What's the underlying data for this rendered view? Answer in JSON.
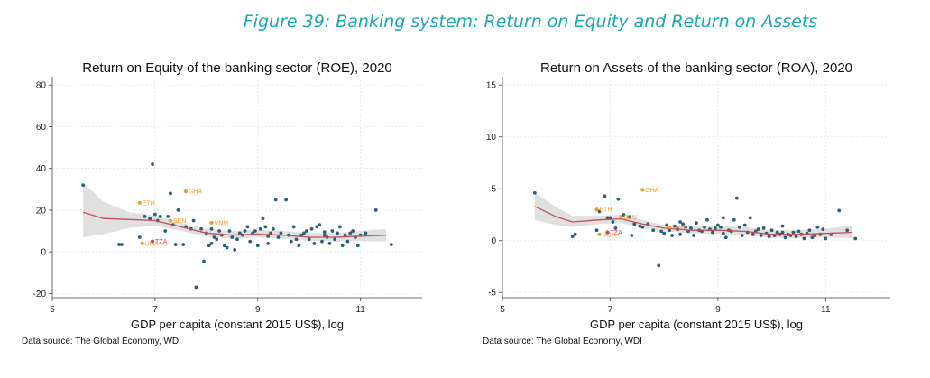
{
  "figure_title": "Figure 39: Banking system: Return on Equity and Return on Assets",
  "colors": {
    "title": "#19a7b0",
    "dots": "#2d5e7a",
    "fit_line": "#c0505a",
    "ci_band": "#d6d6d6",
    "highlight_orange": "#f39a2b",
    "highlight_red": "#e8423c",
    "grid": "#e6e6e6"
  },
  "chart_data": [
    {
      "type": "scatter",
      "title": "Return on Equity of the banking sector (ROE), 2020",
      "xlabel": "GDP per capita (constant 2015 US$), log",
      "ylabel": "",
      "source": "Data source: The Global Economy, WDI",
      "xlim": [
        5,
        12.2
      ],
      "ylim": [
        -22,
        84
      ],
      "xticks": [
        5,
        7,
        9,
        11
      ],
      "yticks": [
        -20,
        0,
        20,
        40,
        60,
        80
      ],
      "grid": true,
      "fit_line": [
        [
          5.6,
          19
        ],
        [
          6.0,
          16
        ],
        [
          6.5,
          15.5
        ],
        [
          7.0,
          15
        ],
        [
          7.5,
          12
        ],
        [
          8.0,
          9
        ],
        [
          8.5,
          8
        ],
        [
          9.0,
          8.5
        ],
        [
          9.5,
          8
        ],
        [
          10.0,
          7
        ],
        [
          10.5,
          7
        ],
        [
          11.0,
          7.5
        ],
        [
          11.5,
          8
        ]
      ],
      "ci_band": {
        "x": [
          5.6,
          6.0,
          6.5,
          7.0,
          7.5,
          8.0,
          8.5,
          9.0,
          9.5,
          10.0,
          10.5,
          11.0,
          11.5
        ],
        "upper": [
          33,
          24,
          19,
          17.5,
          14,
          11,
          10,
          10.5,
          10,
          9,
          9,
          10,
          11
        ],
        "lower": [
          7,
          8.5,
          11.5,
          12.5,
          10,
          7.3,
          6.3,
          6.8,
          6.3,
          5.3,
          5,
          5.2,
          5
        ]
      },
      "points": [
        [
          5.6,
          32
        ],
        [
          6.3,
          3.5
        ],
        [
          6.35,
          3.5
        ],
        [
          6.8,
          17
        ],
        [
          6.9,
          16
        ],
        [
          6.95,
          42
        ],
        [
          7.0,
          18
        ],
        [
          7.05,
          15
        ],
        [
          7.1,
          17
        ],
        [
          7.2,
          10
        ],
        [
          7.25,
          17
        ],
        [
          7.3,
          28
        ],
        [
          7.35,
          13
        ],
        [
          7.4,
          3.5
        ],
        [
          7.45,
          20
        ],
        [
          7.55,
          3.5
        ],
        [
          7.6,
          12
        ],
        [
          7.7,
          11
        ],
        [
          7.75,
          15
        ],
        [
          7.8,
          -17
        ],
        [
          7.9,
          11
        ],
        [
          7.95,
          -4.5
        ],
        [
          8.0,
          9
        ],
        [
          8.05,
          3
        ],
        [
          8.1,
          11
        ],
        [
          8.15,
          7
        ],
        [
          8.2,
          6
        ],
        [
          8.25,
          10
        ],
        [
          8.3,
          8
        ],
        [
          8.35,
          3
        ],
        [
          8.4,
          2
        ],
        [
          8.45,
          10
        ],
        [
          8.5,
          7
        ],
        [
          8.55,
          1
        ],
        [
          8.6,
          6
        ],
        [
          8.65,
          9
        ],
        [
          8.7,
          8
        ],
        [
          8.75,
          10
        ],
        [
          8.8,
          12
        ],
        [
          8.85,
          5
        ],
        [
          8.9,
          9
        ],
        [
          8.95,
          10
        ],
        [
          9.0,
          3
        ],
        [
          9.05,
          11
        ],
        [
          9.1,
          16
        ],
        [
          9.15,
          12
        ],
        [
          9.2,
          4
        ],
        [
          9.25,
          9
        ],
        [
          9.3,
          11
        ],
        [
          9.35,
          25
        ],
        [
          9.4,
          7
        ],
        [
          9.45,
          9
        ],
        [
          9.55,
          25
        ],
        [
          9.6,
          8
        ],
        [
          9.65,
          5
        ],
        [
          9.7,
          12
        ],
        [
          9.75,
          6
        ],
        [
          9.8,
          3
        ],
        [
          9.85,
          8
        ],
        [
          9.9,
          9
        ],
        [
          9.95,
          10
        ],
        [
          10.0,
          6
        ],
        [
          10.05,
          11
        ],
        [
          10.1,
          4
        ],
        [
          10.15,
          12
        ],
        [
          10.2,
          13
        ],
        [
          10.25,
          5
        ],
        [
          10.3,
          8
        ],
        [
          10.35,
          7
        ],
        [
          10.4,
          4
        ],
        [
          10.45,
          10
        ],
        [
          10.5,
          6
        ],
        [
          10.55,
          9
        ],
        [
          10.6,
          12
        ],
        [
          10.65,
          3
        ],
        [
          10.7,
          8
        ],
        [
          10.75,
          5
        ],
        [
          10.8,
          9
        ],
        [
          10.85,
          10
        ],
        [
          10.9,
          7
        ],
        [
          10.95,
          3
        ],
        [
          11.0,
          8
        ],
        [
          11.1,
          9
        ],
        [
          11.3,
          20
        ],
        [
          11.6,
          3.5
        ],
        [
          8.1,
          4
        ],
        [
          9.2,
          7.5
        ],
        [
          10.3,
          9.5
        ],
        [
          6.7,
          7
        ]
      ],
      "highlights": [
        {
          "label": "ETH",
          "x": 6.7,
          "y": 23.5,
          "color": "orange"
        },
        {
          "label": "GHA",
          "x": 7.6,
          "y": 29,
          "color": "orange"
        },
        {
          "label": "SEN",
          "x": 7.3,
          "y": 15,
          "color": "orange"
        },
        {
          "label": "VNM",
          "x": 8.1,
          "y": 14,
          "color": "orange"
        },
        {
          "label": "UGA",
          "x": 6.75,
          "y": 4,
          "color": "orange"
        },
        {
          "label": "TZA",
          "x": 6.95,
          "y": 5,
          "color": "red"
        }
      ]
    },
    {
      "type": "scatter",
      "title": "Return on Assets of the banking sector (ROA), 2020",
      "xlabel": "GDP per capita (constant 2015 US$), log",
      "ylabel": "",
      "source": "Data source: The Global Economy, WDI",
      "xlim": [
        5,
        12.2
      ],
      "ylim": [
        -5.5,
        15.8
      ],
      "xticks": [
        5,
        7,
        9,
        11
      ],
      "yticks": [
        -5,
        0,
        5,
        10,
        15
      ],
      "grid": true,
      "fit_line": [
        [
          5.6,
          3.3
        ],
        [
          6.0,
          2.3
        ],
        [
          6.3,
          1.8
        ],
        [
          6.8,
          2.0
        ],
        [
          7.2,
          2.1
        ],
        [
          7.6,
          1.6
        ],
        [
          8.0,
          1.2
        ],
        [
          8.5,
          1.0
        ],
        [
          9.0,
          1.0
        ],
        [
          9.5,
          0.9
        ],
        [
          10.0,
          0.6
        ],
        [
          10.5,
          0.6
        ],
        [
          11.0,
          0.7
        ],
        [
          11.5,
          0.8
        ]
      ],
      "ci_band": {
        "x": [
          5.6,
          6.0,
          6.3,
          6.8,
          7.2,
          7.6,
          8.0,
          8.5,
          9.0,
          9.5,
          10.0,
          10.5,
          11.0,
          11.5
        ],
        "upper": [
          4.6,
          3.2,
          2.4,
          2.4,
          2.5,
          2.0,
          1.5,
          1.35,
          1.4,
          1.3,
          1.0,
          1.0,
          1.15,
          1.45
        ],
        "lower": [
          2.0,
          1.5,
          1.3,
          1.6,
          1.7,
          1.2,
          0.9,
          0.7,
          0.65,
          0.55,
          0.25,
          0.25,
          0.3,
          0.25
        ]
      },
      "points": [
        [
          5.6,
          4.6
        ],
        [
          6.3,
          0.4
        ],
        [
          6.35,
          0.6
        ],
        [
          6.8,
          2.8
        ],
        [
          6.9,
          4.3
        ],
        [
          6.95,
          2.2
        ],
        [
          7.0,
          2.2
        ],
        [
          7.05,
          1.8
        ],
        [
          7.1,
          1.2
        ],
        [
          7.15,
          4.0
        ],
        [
          7.25,
          2.5
        ],
        [
          7.35,
          2.3
        ],
        [
          7.4,
          0.5
        ],
        [
          7.45,
          1.6
        ],
        [
          7.55,
          1.4
        ],
        [
          7.6,
          1.3
        ],
        [
          7.7,
          1.6
        ],
        [
          7.8,
          1.0
        ],
        [
          7.9,
          -2.4
        ],
        [
          7.95,
          0.9
        ],
        [
          8.0,
          0.7
        ],
        [
          8.05,
          1.5
        ],
        [
          8.1,
          1.0
        ],
        [
          8.15,
          0.5
        ],
        [
          8.2,
          1.4
        ],
        [
          8.25,
          1.1
        ],
        [
          8.3,
          0.6
        ],
        [
          8.35,
          1.6
        ],
        [
          8.4,
          1.3
        ],
        [
          8.45,
          0.9
        ],
        [
          8.5,
          1.2
        ],
        [
          8.55,
          0.5
        ],
        [
          8.6,
          1.7
        ],
        [
          8.65,
          1.0
        ],
        [
          8.7,
          0.9
        ],
        [
          8.75,
          1.3
        ],
        [
          8.8,
          2.0
        ],
        [
          8.85,
          1.1
        ],
        [
          8.9,
          0.8
        ],
        [
          8.95,
          1.2
        ],
        [
          9.0,
          1.5
        ],
        [
          9.05,
          1.3
        ],
        [
          9.1,
          2.2
        ],
        [
          9.15,
          0.3
        ],
        [
          9.2,
          1.0
        ],
        [
          9.25,
          0.9
        ],
        [
          9.3,
          2.0
        ],
        [
          9.35,
          4.1
        ],
        [
          9.4,
          1.3
        ],
        [
          9.45,
          0.5
        ],
        [
          9.5,
          1.5
        ],
        [
          9.55,
          0.8
        ],
        [
          9.6,
          2.2
        ],
        [
          9.65,
          0.6
        ],
        [
          9.7,
          0.9
        ],
        [
          9.75,
          1.1
        ],
        [
          9.8,
          0.5
        ],
        [
          9.85,
          1.2
        ],
        [
          9.9,
          0.7
        ],
        [
          9.95,
          0.4
        ],
        [
          10.0,
          1.0
        ],
        [
          10.05,
          0.5
        ],
        [
          10.1,
          0.8
        ],
        [
          10.15,
          0.6
        ],
        [
          10.2,
          1.4
        ],
        [
          10.25,
          0.3
        ],
        [
          10.3,
          0.6
        ],
        [
          10.35,
          0.5
        ],
        [
          10.4,
          0.8
        ],
        [
          10.45,
          0.4
        ],
        [
          10.5,
          0.9
        ],
        [
          10.55,
          0.6
        ],
        [
          10.6,
          0.2
        ],
        [
          10.65,
          0.7
        ],
        [
          10.7,
          1.0
        ],
        [
          10.75,
          0.3
        ],
        [
          10.8,
          0.5
        ],
        [
          10.85,
          1.3
        ],
        [
          10.9,
          0.6
        ],
        [
          10.95,
          1.1
        ],
        [
          11.0,
          0.2
        ],
        [
          11.1,
          0.6
        ],
        [
          11.25,
          2.9
        ],
        [
          11.4,
          1.0
        ],
        [
          11.55,
          0.2
        ],
        [
          8.3,
          1.8
        ],
        [
          9.1,
          0.7
        ],
        [
          10.2,
          0.8
        ],
        [
          6.75,
          1.0
        ]
      ],
      "highlights": [
        {
          "label": "GHA",
          "x": 7.6,
          "y": 4.9,
          "color": "orange"
        },
        {
          "label": "ETH",
          "x": 6.75,
          "y": 3.0,
          "color": "orange"
        },
        {
          "label": "SEN",
          "x": 7.2,
          "y": 2.3,
          "color": "orange"
        },
        {
          "label": "VNM",
          "x": 8.1,
          "y": 1.3,
          "color": "orange"
        },
        {
          "label": "UGA",
          "x": 6.8,
          "y": 0.6,
          "color": "orange"
        },
        {
          "label": "TZA",
          "x": 6.95,
          "y": 0.8,
          "color": "red"
        }
      ]
    }
  ]
}
